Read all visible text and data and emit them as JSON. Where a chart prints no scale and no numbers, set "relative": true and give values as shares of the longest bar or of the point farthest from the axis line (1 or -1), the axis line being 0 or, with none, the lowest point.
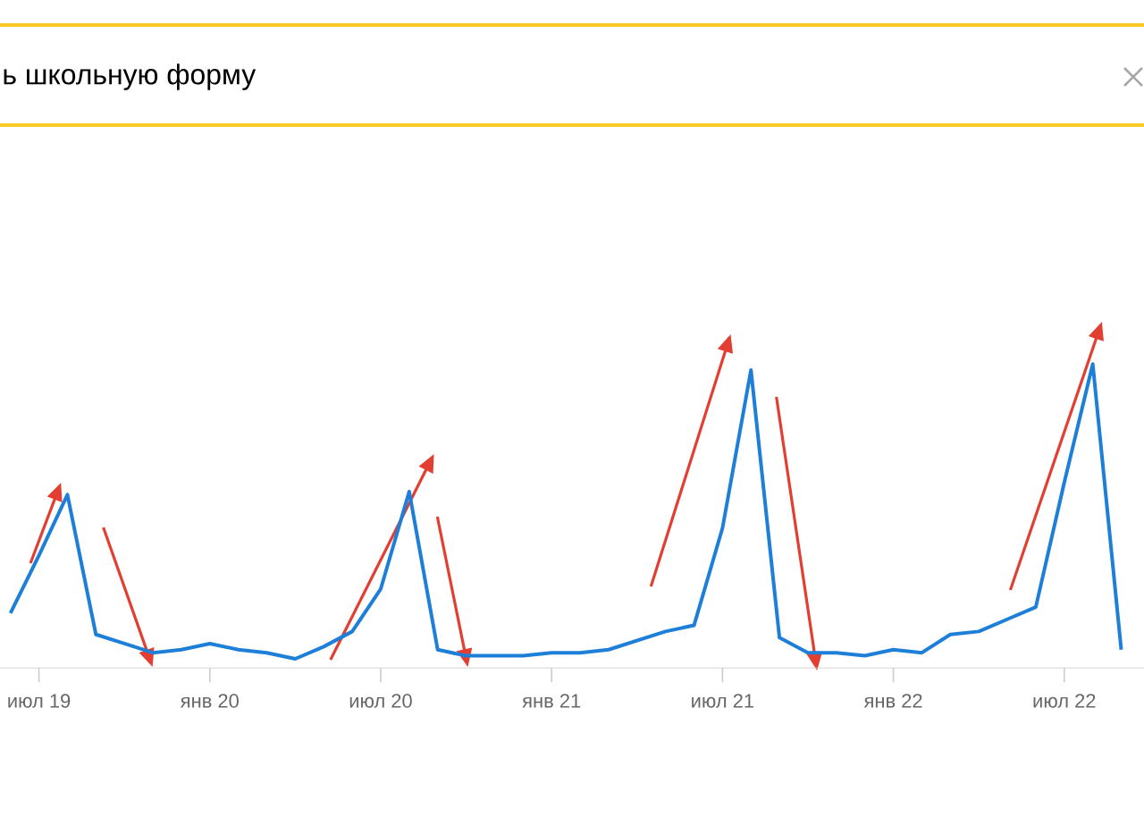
{
  "chart_data": {
    "type": "line",
    "title": "ь школьную форму",
    "relative": true,
    "color": "#1e7fd8",
    "x": [
      "2019-06",
      "2019-07",
      "2019-08",
      "2019-09",
      "2019-10",
      "2019-11",
      "2019-12",
      "2020-01",
      "2020-02",
      "2020-03",
      "2020-04",
      "2020-05",
      "2020-06",
      "2020-07",
      "2020-08",
      "2020-09",
      "2020-10",
      "2020-11",
      "2020-12",
      "2021-01",
      "2021-02",
      "2021-03",
      "2021-04",
      "2021-05",
      "2021-06",
      "2021-07",
      "2021-08",
      "2021-09",
      "2021-10",
      "2021-11",
      "2021-12",
      "2022-01",
      "2022-02",
      "2022-03",
      "2022-04",
      "2022-05",
      "2022-06",
      "2022-07",
      "2022-08",
      "2022-09"
    ],
    "values": [
      0.18,
      0.37,
      0.57,
      0.11,
      0.08,
      0.05,
      0.06,
      0.08,
      0.06,
      0.05,
      0.03,
      0.07,
      0.12,
      0.26,
      0.58,
      0.06,
      0.04,
      0.04,
      0.04,
      0.05,
      0.05,
      0.06,
      0.09,
      0.12,
      0.14,
      0.46,
      0.98,
      0.1,
      0.05,
      0.05,
      0.04,
      0.06,
      0.05,
      0.11,
      0.12,
      0.16,
      0.2,
      0.61,
      1,
      0.06
    ],
    "xlim": [
      "2019-05-20",
      "2022-09-25"
    ],
    "xticks": [
      {
        "value": "2019-07",
        "label": "июл 19"
      },
      {
        "value": "2020-01",
        "label": "янв 20"
      },
      {
        "value": "2020-07",
        "label": "июл 20"
      },
      {
        "value": "2021-01",
        "label": "янв 21"
      },
      {
        "value": "2021-07",
        "label": "июл 21"
      },
      {
        "value": "2022-01",
        "label": "янв 22"
      },
      {
        "value": "2022-07",
        "label": "июл 22"
      }
    ]
  }
}
